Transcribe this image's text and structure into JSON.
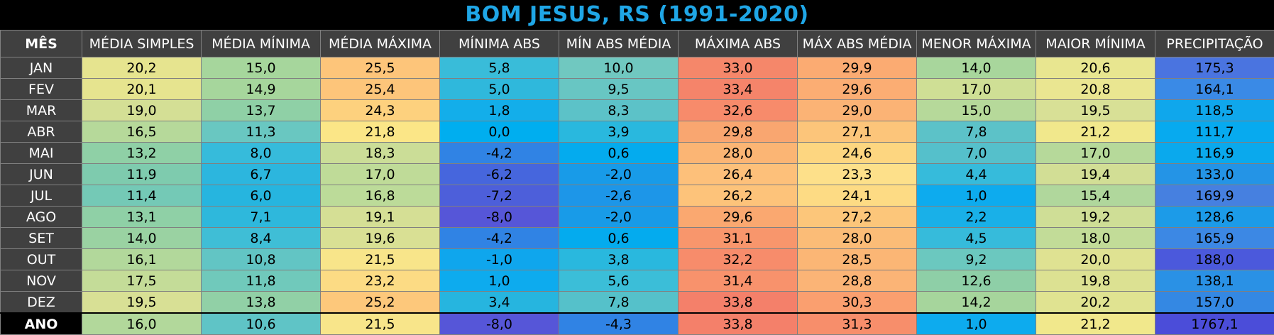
{
  "title": "BOM JESUS, RS (1991-2020)",
  "headers": [
    "MÊS",
    "MÉDIA SIMPLES",
    "MÉDIA MÍNIMA",
    "MÉDIA MÁXIMA",
    "MÍNIMA ABS",
    "MÍN ABS MÉDIA",
    "MÁXIMA ABS",
    "MÁX ABS MÉDIA",
    "MENOR MÁXIMA",
    "MAIOR MÍNIMA",
    "PRECIPITAÇÃO"
  ],
  "rows": [
    {
      "label": "JAN",
      "values": [
        "20,2",
        "15,0",
        "25,5",
        "5,8",
        "10,0",
        "33,0",
        "29,9",
        "14,0",
        "20,6",
        "175,3"
      ],
      "colors": [
        "#e6e48f",
        "#a6d69c",
        "#fdc57a",
        "#39bcd9",
        "#70c8c0",
        "#f5876a",
        "#fbab72",
        "#a8d69c",
        "#e8e690",
        "#4a74e0"
      ]
    },
    {
      "label": "FEV",
      "values": [
        "20,1",
        "14,9",
        "25,4",
        "5,0",
        "9,5",
        "33,4",
        "29,6",
        "17,0",
        "20,8",
        "164,1"
      ],
      "colors": [
        "#e6e48f",
        "#a6d69c",
        "#fdc57a",
        "#2fb8dc",
        "#68c6c3",
        "#f5846a",
        "#fbad73",
        "#cfdf95",
        "#eae691",
        "#3a8ae6"
      ]
    },
    {
      "label": "MAR",
      "values": [
        "19,0",
        "13,7",
        "24,3",
        "1,8",
        "8,3",
        "32,6",
        "29,0",
        "15,0",
        "19,5",
        "118,5"
      ],
      "colors": [
        "#d4df95",
        "#8fd0a6",
        "#fdd17e",
        "#13aeea",
        "#5cc2c8",
        "#f78b6b",
        "#fbb375",
        "#b6d99a",
        "#d8e096",
        "#0fa7ec"
      ]
    },
    {
      "label": "ABR",
      "values": [
        "16,5",
        "11,3",
        "21,8",
        "0,0",
        "3,9",
        "29,8",
        "27,1",
        "7,8",
        "21,2",
        "111,7"
      ],
      "colors": [
        "#b6d99a",
        "#69c7c1",
        "#fbe687",
        "#00aeef",
        "#29b8de",
        "#f9a670",
        "#fcc57a",
        "#5cc2c8",
        "#f1e88c",
        "#07aaef"
      ]
    },
    {
      "label": "MAI",
      "values": [
        "13,2",
        "8,0",
        "18,3",
        "-4,2",
        "0,6",
        "28,0",
        "24,6",
        "7,0",
        "17,0",
        "116,9"
      ],
      "colors": [
        "#8fd0a6",
        "#36bbdb",
        "#cbdd97",
        "#3083e4",
        "#04abee",
        "#fbb574",
        "#fdd680",
        "#55c0cb",
        "#b6d99a",
        "#0aa9ed"
      ]
    },
    {
      "label": "JUN",
      "values": [
        "11,9",
        "6,7",
        "17,0",
        "-6,2",
        "-2,0",
        "26,4",
        "23,3",
        "4,4",
        "19,4",
        "133,0"
      ],
      "colors": [
        "#7ecbae",
        "#2cb6de",
        "#bfdb98",
        "#4666dd",
        "#189be8",
        "#fdc07a",
        "#fde08a",
        "#36bbdb",
        "#d2de95",
        "#2494e6"
      ]
    },
    {
      "label": "JUL",
      "values": [
        "11,4",
        "6,0",
        "16,8",
        "-7,2",
        "-2,6",
        "26,2",
        "24,1",
        "1,0",
        "15,4",
        "169,9"
      ],
      "colors": [
        "#74c9b6",
        "#26b5df",
        "#bcdb99",
        "#4d5fda",
        "#1d96e8",
        "#fdc37a",
        "#fddb84",
        "#0dabee",
        "#b0d79c",
        "#4680e0"
      ]
    },
    {
      "label": "AGO",
      "values": [
        "13,1",
        "7,1",
        "19,1",
        "-8,0",
        "-2,0",
        "29,6",
        "27,2",
        "2,2",
        "19,2",
        "128,6"
      ],
      "colors": [
        "#8fd0a6",
        "#2eb8dc",
        "#d5df95",
        "#5656d8",
        "#189be8",
        "#faa870",
        "#fcc67a",
        "#19b0e8",
        "#cfde96",
        "#1c9be8"
      ]
    },
    {
      "label": "SET",
      "values": [
        "14,0",
        "8,4",
        "19,6",
        "-4,2",
        "0,6",
        "31,1",
        "28,0",
        "4,5",
        "18,0",
        "165,9"
      ],
      "colors": [
        "#9ad2a2",
        "#3fbed6",
        "#d9e094",
        "#3083e4",
        "#04abee",
        "#f8966c",
        "#fbbc77",
        "#36bbdb",
        "#c2dc98",
        "#3c88e4"
      ]
    },
    {
      "label": "OUT",
      "values": [
        "16,1",
        "10,8",
        "21,5",
        "-1,0",
        "3,8",
        "32,2",
        "28,5",
        "9,2",
        "20,0",
        "188,0"
      ],
      "colors": [
        "#b2d89b",
        "#62c5c4",
        "#f8e58a",
        "#0fa6ed",
        "#29b8de",
        "#f78c6b",
        "#fbb675",
        "#6bc8bf",
        "#dfe292",
        "#4b59dc"
      ]
    },
    {
      "label": "NOV",
      "values": [
        "17,5",
        "11,8",
        "23,2",
        "1,0",
        "5,6",
        "31,4",
        "28,8",
        "12,6",
        "19,8",
        "138,1"
      ],
      "colors": [
        "#c4dc98",
        "#70c9bb",
        "#fcdb84",
        "#0dabee",
        "#3bbed8",
        "#f8926c",
        "#fbb476",
        "#8ecfa7",
        "#dce192",
        "#2a91e5"
      ]
    },
    {
      "label": "DEZ",
      "values": [
        "19,5",
        "13,8",
        "25,2",
        "3,4",
        "7,8",
        "33,8",
        "30,3",
        "14,2",
        "20,2",
        "157,0"
      ],
      "colors": [
        "#d8e095",
        "#91d0a6",
        "#fdc87b",
        "#26b5df",
        "#55c1ca",
        "#f4806a",
        "#fa9f6f",
        "#a6d59c",
        "#e0e391",
        "#3488e3"
      ]
    }
  ],
  "total": {
    "label": "ANO",
    "values": [
      "16,0",
      "10,6",
      "21,5",
      "-8,0",
      "-4,3",
      "33,8",
      "31,3",
      "1,0",
      "21,2",
      "1767,1"
    ],
    "colors": [
      "#b2d89b",
      "#5fc4c6",
      "#f8e58a",
      "#5656d8",
      "#3083e4",
      "#f4806a",
      "#f78e6b",
      "#0dabee",
      "#f1e88c",
      "#4b4dd9"
    ]
  }
}
